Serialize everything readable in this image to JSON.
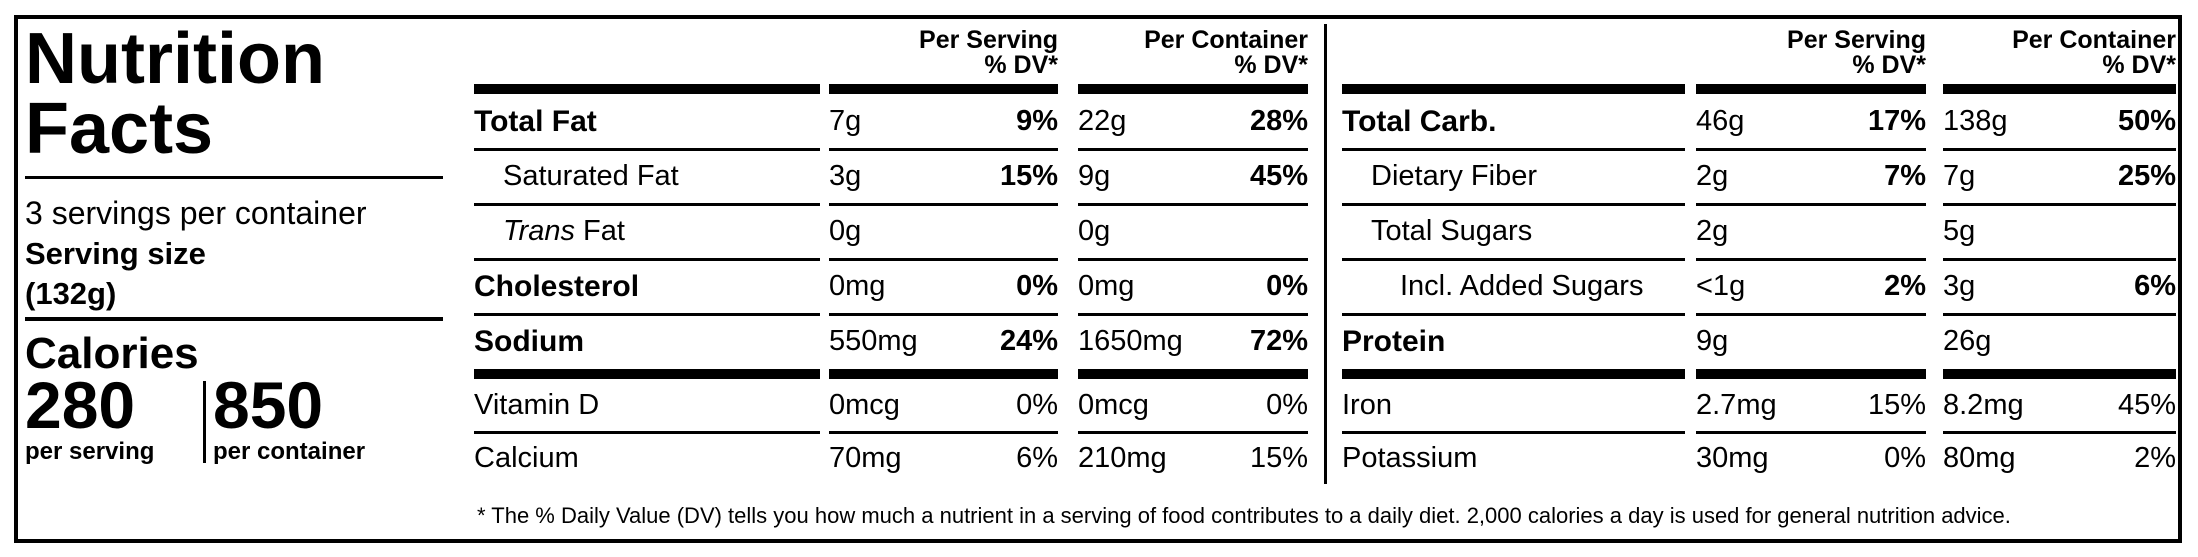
{
  "title_line1": "Nutrition",
  "title_line2": "Facts",
  "servings": "3 servings per container",
  "serving_size_label": "Serving size",
  "serving_size": "(132g)",
  "calories": {
    "label": "Calories",
    "per_serving": "280",
    "per_container": "850",
    "per_serving_label": "per serving",
    "per_container_label": "per container"
  },
  "column_headers": {
    "per_serving": "Per Serving",
    "per_container": "Per Container",
    "dv": "% DV*"
  },
  "tables": [
    {
      "main": [
        {
          "name": "Total Fat",
          "bold": true,
          "serving": "7g",
          "serving_dv": "9%",
          "container": "22g",
          "container_dv": "28%"
        },
        {
          "name": "Saturated Fat",
          "indent": 1,
          "serving": "3g",
          "serving_dv": "15%",
          "container": "9g",
          "container_dv": "45%"
        },
        {
          "name_italic": "Trans",
          "name": "Fat",
          "indent": 1,
          "serving": "0g",
          "container": "0g"
        },
        {
          "name": "Cholesterol",
          "bold": true,
          "serving": "0mg",
          "serving_dv": "0%",
          "container": "0mg",
          "container_dv": "0%"
        },
        {
          "name": "Sodium",
          "bold": true,
          "serving": "550mg",
          "serving_dv": "24%",
          "container": "1650mg",
          "container_dv": "72%"
        }
      ],
      "minerals": [
        {
          "name": "Vitamin D",
          "serving": "0mcg",
          "serving_dv": "0%",
          "container": "0mcg",
          "container_dv": "0%"
        },
        {
          "name": "Calcium",
          "serving": "70mg",
          "serving_dv": "6%",
          "container": "210mg",
          "container_dv": "15%"
        }
      ]
    },
    {
      "main": [
        {
          "name": "Total Carb.",
          "bold": true,
          "serving": "46g",
          "serving_dv": "17%",
          "container": "138g",
          "container_dv": "50%"
        },
        {
          "name": "Dietary Fiber",
          "indent": 1,
          "serving": "2g",
          "serving_dv": "7%",
          "container": "7g",
          "container_dv": "25%"
        },
        {
          "name": "Total Sugars",
          "indent": 1,
          "serving": "2g",
          "container": "5g"
        },
        {
          "name": "Incl. Added Sugars",
          "indent": 2,
          "serving": "<1g",
          "serving_dv": "2%",
          "container": "3g",
          "container_dv": "6%"
        },
        {
          "name": "Protein",
          "bold": true,
          "serving": "9g",
          "container": "26g"
        }
      ],
      "minerals": [
        {
          "name": "Iron",
          "serving": "2.7mg",
          "serving_dv": "15%",
          "container": "8.2mg",
          "container_dv": "45%"
        },
        {
          "name": "Potassium",
          "serving": "30mg",
          "serving_dv": "0%",
          "container": "80mg",
          "container_dv": "2%"
        }
      ]
    }
  ],
  "footnote": "* The % Daily Value (DV) tells you how much a nutrient in a serving of food contributes to a daily diet. 2,000 calories a day is used for general nutrition advice."
}
